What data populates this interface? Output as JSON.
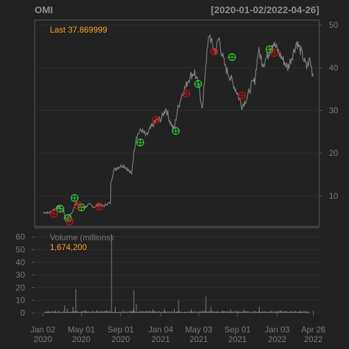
{
  "chart_data": {
    "type": "line",
    "title": "OMI",
    "date_range": "[2020-01-02/2022-04-26]",
    "last_label": "Last 37.869999",
    "colors": {
      "background": "#222222",
      "price_line": "#7f7f7f",
      "buy_marker": "#2fd12f",
      "sell_marker": "#c41414",
      "volume_bar": "#7f7f7f",
      "text_orange": "#ff9f2a",
      "text_grey": "#7a7a7a",
      "frame": "#5a5a5a"
    },
    "price_axis": {
      "ylim": [
        3,
        51
      ],
      "ticks": [
        10,
        20,
        30,
        40,
        50
      ]
    },
    "volume_axis": {
      "label": "Volume (millions):",
      "last_volume": "1,674,200",
      "ylim": [
        0,
        65
      ],
      "ticks": [
        0,
        10,
        20,
        30,
        40,
        50,
        60
      ]
    },
    "x_axis": {
      "start": "2020-01-02",
      "end": "2022-05-10",
      "ticks": [
        {
          "date": "2020-01-02",
          "line1": "Jan 02",
          "line2": "2020"
        },
        {
          "date": "2020-05-01",
          "line1": "May 01",
          "line2": "2020"
        },
        {
          "date": "2020-09-01",
          "line1": "Sep 01",
          "line2": "2020"
        },
        {
          "date": "2021-01-04",
          "line1": "Jan 04",
          "line2": "2021"
        },
        {
          "date": "2021-05-03",
          "line1": "May 03",
          "line2": "2021"
        },
        {
          "date": "2021-09-01",
          "line1": "Sep 01",
          "line2": "2021"
        },
        {
          "date": "2022-01-03",
          "line1": "Jan 03",
          "line2": "2022"
        },
        {
          "date": "2022-04-26",
          "line1": "Apr 26",
          "line2": "2022"
        }
      ]
    },
    "price_series": [
      [
        "2020-01-02",
        6.2
      ],
      [
        "2020-01-20",
        6.0
      ],
      [
        "2020-02-05",
        6.8
      ],
      [
        "2020-02-20",
        7.5
      ],
      [
        "2020-03-05",
        6.5
      ],
      [
        "2020-03-18",
        4.2
      ],
      [
        "2020-03-25",
        5.2
      ],
      [
        "2020-04-05",
        6.5
      ],
      [
        "2020-04-15",
        8.5
      ],
      [
        "2020-04-25",
        7.6
      ],
      [
        "2020-05-10",
        7.2
      ],
      [
        "2020-05-25",
        8.0
      ],
      [
        "2020-06-10",
        7.4
      ],
      [
        "2020-06-25",
        8.0
      ],
      [
        "2020-07-10",
        7.6
      ],
      [
        "2020-07-25",
        8.3
      ],
      [
        "2020-07-31",
        8.2
      ],
      [
        "2020-08-01",
        13.0
      ],
      [
        "2020-08-10",
        16.0
      ],
      [
        "2020-08-25",
        16.8
      ],
      [
        "2020-09-10",
        17.2
      ],
      [
        "2020-09-25",
        16.0
      ],
      [
        "2020-10-05",
        15.0
      ],
      [
        "2020-10-12",
        20.0
      ],
      [
        "2020-10-20",
        24.0
      ],
      [
        "2020-11-05",
        25.5
      ],
      [
        "2020-11-20",
        24.0
      ],
      [
        "2020-12-05",
        26.0
      ],
      [
        "2020-12-20",
        27.5
      ],
      [
        "2021-01-05",
        28.0
      ],
      [
        "2021-01-20",
        30.5
      ],
      [
        "2021-02-05",
        27.0
      ],
      [
        "2021-02-15",
        25.5
      ],
      [
        "2021-02-25",
        30.0
      ],
      [
        "2021-03-10",
        33.5
      ],
      [
        "2021-03-25",
        36.0
      ],
      [
        "2021-04-05",
        38.0
      ],
      [
        "2021-04-20",
        39.0
      ],
      [
        "2021-05-01",
        36.0
      ],
      [
        "2021-05-15",
        30.5
      ],
      [
        "2021-05-25",
        41.0
      ],
      [
        "2021-06-05",
        48.0
      ],
      [
        "2021-06-15",
        45.0
      ],
      [
        "2021-06-25",
        44.0
      ],
      [
        "2021-07-05",
        47.0
      ],
      [
        "2021-07-15",
        43.0
      ],
      [
        "2021-07-25",
        40.0
      ],
      [
        "2021-08-05",
        38.5
      ],
      [
        "2021-08-20",
        36.0
      ],
      [
        "2021-09-01",
        34.0
      ],
      [
        "2021-09-15",
        31.0
      ],
      [
        "2021-10-01",
        33.0
      ],
      [
        "2021-10-15",
        36.0
      ],
      [
        "2021-10-25",
        37.0
      ],
      [
        "2021-11-05",
        44.0
      ],
      [
        "2021-11-20",
        41.0
      ],
      [
        "2021-12-05",
        43.0
      ],
      [
        "2021-12-20",
        46.0
      ],
      [
        "2022-01-05",
        44.0
      ],
      [
        "2022-01-20",
        42.0
      ],
      [
        "2022-02-05",
        40.0
      ],
      [
        "2022-02-20",
        43.0
      ],
      [
        "2022-03-05",
        46.0
      ],
      [
        "2022-03-20",
        43.5
      ],
      [
        "2022-04-05",
        40.0
      ],
      [
        "2022-04-15",
        42.0
      ],
      [
        "2022-04-26",
        37.87
      ]
    ],
    "buy_signals": [
      [
        "2020-02-25",
        7.0
      ],
      [
        "2020-03-20",
        4.8
      ],
      [
        "2020-04-10",
        9.5
      ],
      [
        "2020-05-01",
        7.3
      ],
      [
        "2020-11-01",
        22.5
      ],
      [
        "2021-02-20",
        25.2
      ],
      [
        "2021-05-01",
        36.2
      ],
      [
        "2021-08-15",
        42.5
      ],
      [
        "2021-12-10",
        44.3
      ]
    ],
    "sell_signals": [
      [
        "2020-02-05",
        5.8
      ],
      [
        "2020-03-25",
        4.0
      ],
      [
        "2020-04-20",
        7.8
      ],
      [
        "2020-06-25",
        7.5
      ],
      [
        "2020-12-20",
        27.8
      ],
      [
        "2021-03-25",
        34.0
      ],
      [
        "2021-06-20",
        43.8
      ],
      [
        "2021-09-15",
        33.5
      ],
      [
        "2021-12-25",
        43.5
      ]
    ],
    "volume_series": [
      [
        "2020-01-15",
        1.2
      ],
      [
        "2020-02-10",
        2.0
      ],
      [
        "2020-03-10",
        6.0
      ],
      [
        "2020-03-18",
        3.5
      ],
      [
        "2020-04-05",
        5.0
      ],
      [
        "2020-04-14",
        19.0
      ],
      [
        "2020-05-15",
        2.5
      ],
      [
        "2020-06-20",
        2.0
      ],
      [
        "2020-07-20",
        2.2
      ],
      [
        "2020-08-03",
        62.0
      ],
      [
        "2020-08-15",
        5.0
      ],
      [
        "2020-09-10",
        2.2
      ],
      [
        "2020-10-10",
        3.0
      ],
      [
        "2020-10-12",
        18.0
      ],
      [
        "2020-10-20",
        7.0
      ],
      [
        "2020-12-10",
        3.0
      ],
      [
        "2021-01-15",
        3.5
      ],
      [
        "2021-02-15",
        3.0
      ],
      [
        "2021-03-01",
        10.0
      ],
      [
        "2021-04-10",
        3.0
      ],
      [
        "2021-05-15",
        2.0
      ],
      [
        "2021-05-25",
        13.0
      ],
      [
        "2021-06-10",
        5.0
      ],
      [
        "2021-07-15",
        2.0
      ],
      [
        "2021-08-10",
        3.0
      ],
      [
        "2021-09-20",
        2.5
      ],
      [
        "2021-11-08",
        5.0
      ],
      [
        "2021-12-15",
        2.0
      ],
      [
        "2022-01-15",
        2.0
      ],
      [
        "2022-02-15",
        1.5
      ],
      [
        "2022-03-15",
        2.0
      ],
      [
        "2022-04-26",
        1.67
      ]
    ]
  }
}
